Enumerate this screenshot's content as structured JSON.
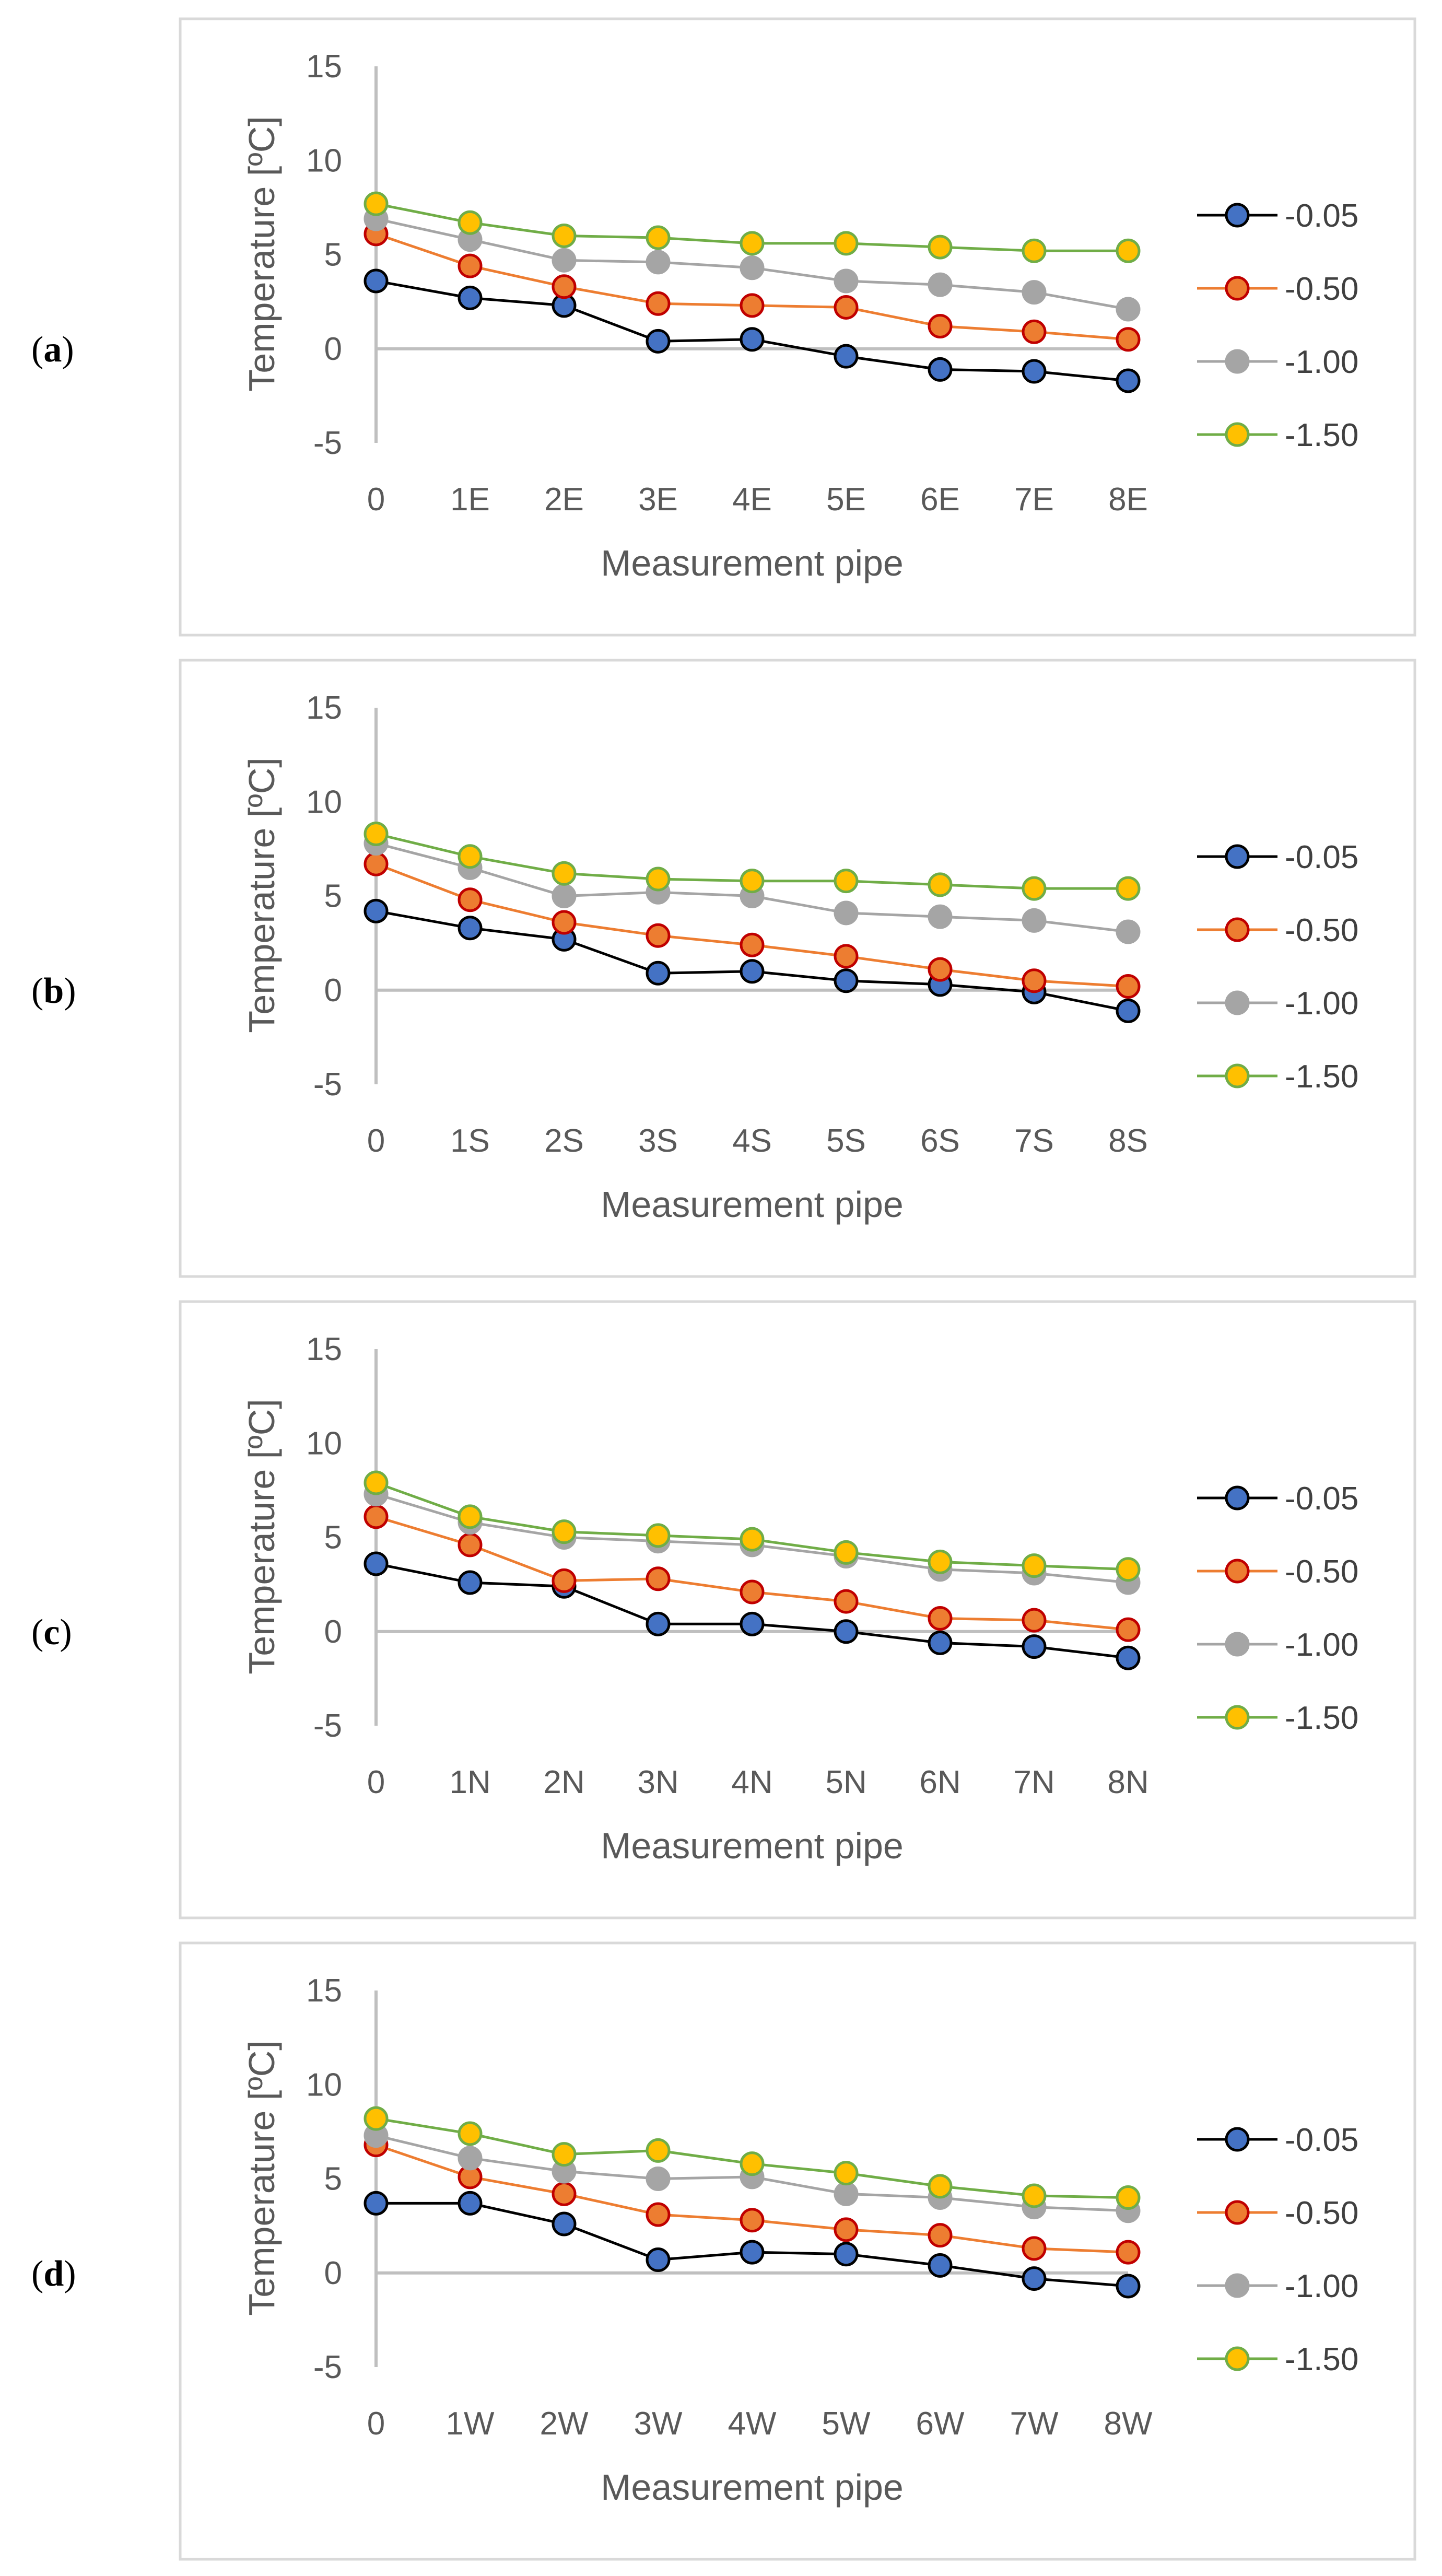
{
  "series_styles": [
    {
      "name": "-0.05",
      "line": "#000000",
      "fill": "#4472c4",
      "stroke": "#000000"
    },
    {
      "name": "-0.50",
      "line": "#ed7d31",
      "fill": "#ed7d31",
      "stroke": "#c00000"
    },
    {
      "name": "-1.00",
      "line": "#a5a5a5",
      "fill": "#a5a5a5",
      "stroke": "#a5a5a5"
    },
    {
      "name": "-1.50",
      "line": "#70ad47",
      "fill": "#ffc000",
      "stroke": "#70ad47"
    }
  ],
  "chart_data": [
    {
      "type": "line",
      "panel": "a",
      "xlabel": "Measurement pipe",
      "ylabel": "Temperature [ºC]",
      "ylim": [
        -5,
        15
      ],
      "yticks": [
        -5,
        0,
        5,
        10,
        15
      ],
      "categories": [
        "0",
        "1E",
        "2E",
        "3E",
        "4E",
        "5E",
        "6E",
        "7E",
        "8E"
      ],
      "series": [
        {
          "name": "-0.05",
          "values": [
            3.6,
            2.7,
            2.3,
            0.4,
            0.5,
            -0.4,
            -1.1,
            -1.2,
            -1.7
          ]
        },
        {
          "name": "-0.50",
          "values": [
            6.1,
            4.4,
            3.3,
            2.4,
            2.3,
            2.2,
            1.2,
            0.9,
            0.5
          ]
        },
        {
          "name": "-1.00",
          "values": [
            6.9,
            5.8,
            4.7,
            4.6,
            4.3,
            3.6,
            3.4,
            3.0,
            2.1
          ]
        },
        {
          "name": "-1.50",
          "values": [
            7.7,
            6.7,
            6.0,
            5.9,
            5.6,
            5.6,
            5.4,
            5.2,
            5.2
          ]
        }
      ]
    },
    {
      "type": "line",
      "panel": "b",
      "xlabel": "Measurement pipe",
      "ylabel": "Temperature [ºC]",
      "ylim": [
        -5,
        15
      ],
      "yticks": [
        -5,
        0,
        5,
        10,
        15
      ],
      "categories": [
        "0",
        "1S",
        "2S",
        "3S",
        "4S",
        "5S",
        "6S",
        "7S",
        "8S"
      ],
      "series": [
        {
          "name": "-0.05",
          "values": [
            4.2,
            3.3,
            2.7,
            0.9,
            1.0,
            0.5,
            0.3,
            -0.1,
            -1.1
          ]
        },
        {
          "name": "-0.50",
          "values": [
            6.7,
            4.8,
            3.6,
            2.9,
            2.4,
            1.8,
            1.1,
            0.5,
            0.2
          ]
        },
        {
          "name": "-1.00",
          "values": [
            7.8,
            6.5,
            5.0,
            5.2,
            5.0,
            4.1,
            3.9,
            3.7,
            3.1
          ]
        },
        {
          "name": "-1.50",
          "values": [
            8.3,
            7.1,
            6.2,
            5.9,
            5.8,
            5.8,
            5.6,
            5.4,
            5.4
          ]
        }
      ]
    },
    {
      "type": "line",
      "panel": "c",
      "xlabel": "Measurement pipe",
      "ylabel": "Temperature [ºC]",
      "ylim": [
        -5,
        15
      ],
      "yticks": [
        -5,
        0,
        5,
        10,
        15
      ],
      "categories": [
        "0",
        "1N",
        "2N",
        "3N",
        "4N",
        "5N",
        "6N",
        "7N",
        "8N"
      ],
      "series": [
        {
          "name": "-0.05",
          "values": [
            3.6,
            2.6,
            2.4,
            0.4,
            0.4,
            0.0,
            -0.6,
            -0.8,
            -1.4
          ]
        },
        {
          "name": "-0.50",
          "values": [
            6.1,
            4.6,
            2.7,
            2.8,
            2.1,
            1.6,
            0.7,
            0.6,
            0.1
          ]
        },
        {
          "name": "-1.00",
          "values": [
            7.3,
            5.8,
            5.0,
            4.8,
            4.6,
            4.0,
            3.3,
            3.1,
            2.6
          ]
        },
        {
          "name": "-1.50",
          "values": [
            7.9,
            6.1,
            5.3,
            5.1,
            4.9,
            4.2,
            3.7,
            3.5,
            3.3
          ]
        }
      ]
    },
    {
      "type": "line",
      "panel": "d",
      "xlabel": "Measurement pipe",
      "ylabel": "Temperature [ºC]",
      "ylim": [
        -5,
        15
      ],
      "yticks": [
        -5,
        0,
        5,
        10,
        15
      ],
      "categories": [
        "0",
        "1W",
        "2W",
        "3W",
        "4W",
        "5W",
        "6W",
        "7W",
        "8W"
      ],
      "series": [
        {
          "name": "-0.05",
          "values": [
            3.7,
            3.7,
            2.6,
            0.7,
            1.1,
            1.0,
            0.4,
            -0.3,
            -0.7
          ]
        },
        {
          "name": "-0.50",
          "values": [
            6.8,
            5.1,
            4.2,
            3.1,
            2.8,
            2.3,
            2.0,
            1.3,
            1.1
          ]
        },
        {
          "name": "-1.00",
          "values": [
            7.3,
            6.1,
            5.4,
            5.0,
            5.1,
            4.2,
            4.0,
            3.5,
            3.3
          ]
        },
        {
          "name": "-1.50",
          "values": [
            8.2,
            7.4,
            6.3,
            6.5,
            5.8,
            5.3,
            4.6,
            4.1,
            4.0
          ]
        }
      ]
    }
  ]
}
